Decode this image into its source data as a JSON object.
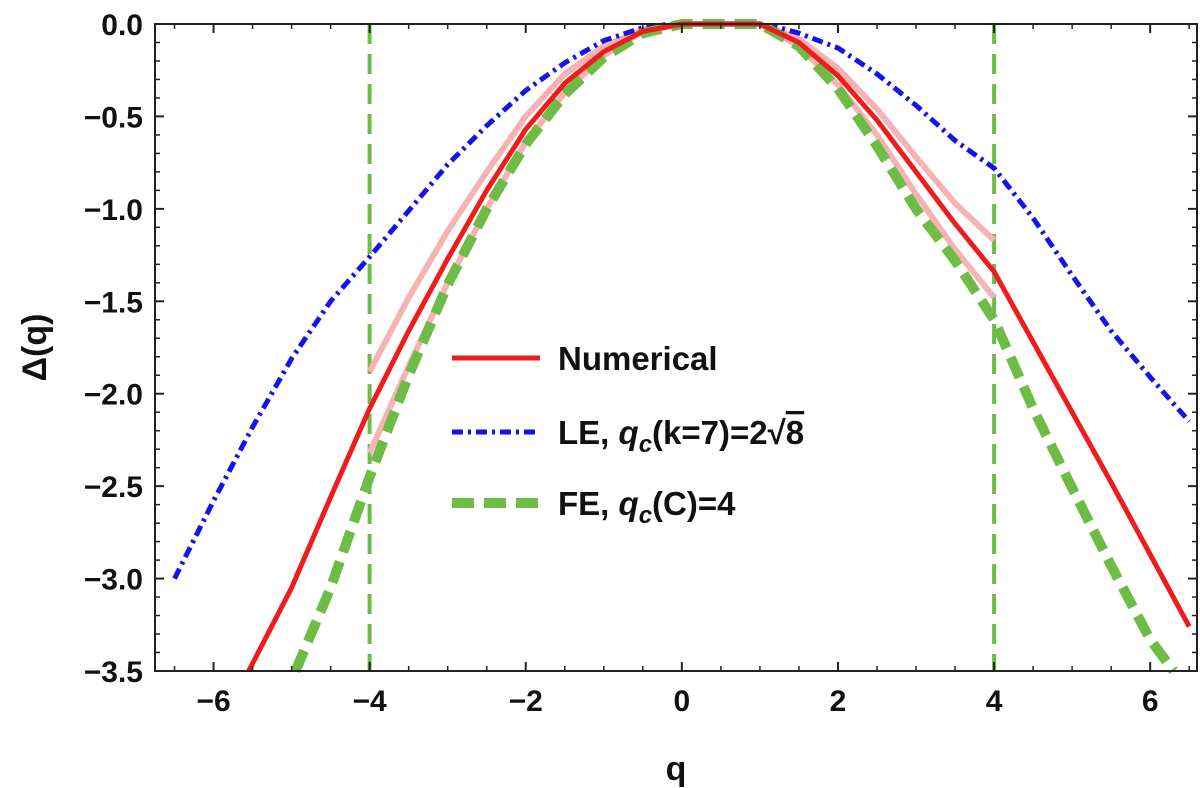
{
  "chart_data": {
    "type": "line",
    "xlabel": "q",
    "ylabel": "Δ(q)",
    "xlim": [
      -6.75,
      6.6
    ],
    "ylim": [
      -3.5,
      0.0
    ],
    "xticks": [
      -6,
      -4,
      -2,
      0,
      2,
      4,
      6
    ],
    "xtick_labels": [
      "−6",
      "−4",
      "−2",
      "0",
      "2",
      "4",
      "6"
    ],
    "yticks": [
      0.0,
      -0.5,
      -1.0,
      -1.5,
      -2.0,
      -2.5,
      -3.0,
      -3.5
    ],
    "ytick_labels": [
      "0.0",
      "−0.5",
      "−1.0",
      "−1.5",
      "−2.0",
      "−2.5",
      "−3.0",
      "−3.5"
    ],
    "grid": false,
    "legend_position": "center",
    "colors": {
      "numerical": "#ee1c1c",
      "band": "#f7b3b3",
      "le": "#1414e6",
      "fe": "#6cbc45"
    },
    "series": [
      {
        "name": "Numerical",
        "style": "solid",
        "color": "#ee1c1c",
        "x": [
          -5.55,
          -5.0,
          -4.5,
          -4.0,
          -3.5,
          -3.0,
          -2.5,
          -2.0,
          -1.5,
          -1.0,
          -0.5,
          0.0,
          1.0,
          1.5,
          2.0,
          2.5,
          3.0,
          3.5,
          4.0,
          4.5,
          5.0,
          5.5,
          6.0,
          6.5
        ],
        "y": [
          -3.5,
          -3.05,
          -2.56,
          -2.08,
          -1.66,
          -1.27,
          -0.9,
          -0.57,
          -0.32,
          -0.15,
          -0.04,
          0.0,
          0.0,
          -0.1,
          -0.28,
          -0.52,
          -0.8,
          -1.08,
          -1.34,
          -1.72,
          -2.1,
          -2.48,
          -2.87,
          -3.26
        ]
      },
      {
        "name": "LE, q_c(k=7)=2√8",
        "style": "dashdot",
        "color": "#1414e6",
        "x": [
          -6.5,
          -6.0,
          -5.5,
          -5.0,
          -4.5,
          -4.0,
          -3.5,
          -3.0,
          -2.5,
          -2.0,
          -1.5,
          -1.0,
          -0.5,
          -0.25,
          0.0,
          1.0,
          1.25,
          1.5,
          2.0,
          2.5,
          3.0,
          3.5,
          4.0,
          4.5,
          5.0,
          5.5,
          6.0,
          6.5
        ],
        "y": [
          -3.0,
          -2.58,
          -2.18,
          -1.81,
          -1.5,
          -1.26,
          -1.01,
          -0.76,
          -0.55,
          -0.36,
          -0.21,
          -0.09,
          -0.02,
          -0.005,
          0.0,
          0.0,
          -0.02,
          -0.05,
          -0.13,
          -0.27,
          -0.44,
          -0.63,
          -0.78,
          -1.05,
          -1.36,
          -1.66,
          -1.91,
          -2.15
        ]
      },
      {
        "name": "FE, q_c(C)=4",
        "style": "dashed",
        "color": "#6cbc45",
        "x": [
          -4.95,
          -4.5,
          -4.0,
          -3.5,
          -3.0,
          -2.5,
          -2.0,
          -1.5,
          -1.0,
          -0.5,
          0.0,
          1.0,
          1.5,
          2.0,
          2.5,
          3.0,
          3.5,
          4.0,
          4.5,
          5.0,
          5.5,
          6.0,
          6.3
        ],
        "y": [
          -3.5,
          -3.05,
          -2.45,
          -1.9,
          -1.41,
          -1.0,
          -0.65,
          -0.38,
          -0.18,
          -0.05,
          0.0,
          0.0,
          -0.12,
          -0.35,
          -0.66,
          -1.0,
          -1.28,
          -1.6,
          -2.08,
          -2.51,
          -2.93,
          -3.33,
          -3.5
        ]
      },
      {
        "name": "",
        "role": "vertical-marker",
        "style": "dashed",
        "color": "#6cbc45",
        "x": [
          -4.0,
          -4.0
        ],
        "y": [
          0.0,
          -3.5
        ]
      },
      {
        "name": "",
        "role": "vertical-marker",
        "style": "dashed",
        "color": "#6cbc45",
        "x": [
          4.0,
          4.0
        ],
        "y": [
          0.0,
          -3.5
        ]
      },
      {
        "name": "",
        "role": "error-band-upper",
        "style": "solid",
        "color": "#f7b3b3",
        "x": [
          -4.0,
          -3.5,
          -3.0,
          -2.5,
          -2.0,
          -1.5,
          -1.0,
          -0.5,
          0.0,
          1.0,
          1.5,
          2.0,
          2.5,
          3.0,
          3.5,
          4.0
        ],
        "y": [
          -1.88,
          -1.48,
          -1.12,
          -0.8,
          -0.5,
          -0.27,
          -0.12,
          -0.03,
          0.0,
          0.0,
          -0.08,
          -0.24,
          -0.46,
          -0.72,
          -0.97,
          -1.17
        ]
      },
      {
        "name": "",
        "role": "error-band-lower",
        "style": "solid",
        "color": "#f7b3b3",
        "x": [
          -4.0,
          -3.5,
          -3.0,
          -2.5,
          -2.0,
          -1.5,
          -1.0,
          -0.5,
          0.0,
          1.0,
          1.5,
          2.0,
          2.5,
          3.0,
          3.5,
          4.0
        ],
        "y": [
          -2.32,
          -1.85,
          -1.4,
          -1.0,
          -0.64,
          -0.37,
          -0.17,
          -0.04,
          0.0,
          0.0,
          -0.12,
          -0.33,
          -0.6,
          -0.92,
          -1.22,
          -1.48
        ]
      }
    ],
    "legend": [
      {
        "label": "Numerical",
        "style": "solid",
        "color": "#ee1c1c"
      },
      {
        "label_prefix": "LE, ",
        "label_italic": "q",
        "label_sub": "c",
        "label_suffix": "(k=7)=2",
        "label_root": "√",
        "label_radicand": "8",
        "style": "dashdot",
        "color": "#1414e6"
      },
      {
        "label_prefix": "FE, ",
        "label_italic": "q",
        "label_sub": "c",
        "label_suffix": "(C)=4",
        "style": "dashed",
        "color": "#6cbc45"
      }
    ]
  }
}
